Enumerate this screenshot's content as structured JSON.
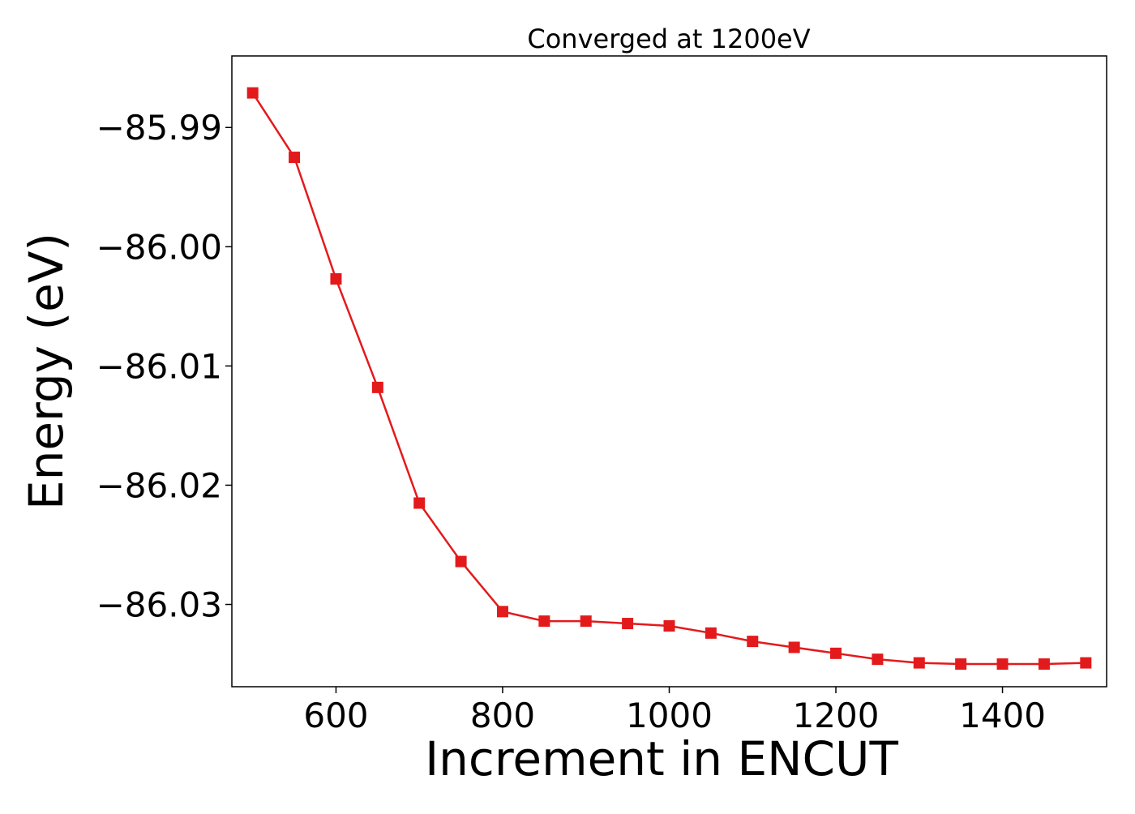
{
  "chart_data": {
    "type": "line",
    "title": "Converged at 1200eV",
    "xlabel": "Increment in ENCUT",
    "ylabel": "Energy (eV)",
    "xlim": [
      475,
      1525
    ],
    "ylim": [
      -86.0369,
      -85.984
    ],
    "x_ticks": [
      600,
      800,
      1000,
      1200,
      1400
    ],
    "x_tick_labels": [
      "600",
      "800",
      "1000",
      "1200",
      "1400"
    ],
    "y_ticks": [
      -85.99,
      -86.0,
      -86.01,
      -86.02,
      -86.03
    ],
    "y_tick_labels": [
      "−85.99",
      "−86.00",
      "−86.01",
      "−86.02",
      "−86.03"
    ],
    "grid": false,
    "series": [
      {
        "color": "#e31a1c",
        "marker": "square",
        "x": [
          500,
          550,
          600,
          650,
          700,
          750,
          800,
          850,
          900,
          950,
          1000,
          1050,
          1100,
          1150,
          1200,
          1250,
          1300,
          1350,
          1400,
          1450,
          1500
        ],
        "y": [
          -85.9871,
          -85.9925,
          -86.0027,
          -86.0118,
          -86.0215,
          -86.0264,
          -86.0306,
          -86.0314,
          -86.0314,
          -86.0316,
          -86.0318,
          -86.0324,
          -86.0331,
          -86.0336,
          -86.0341,
          -86.0346,
          -86.0349,
          -86.035,
          -86.035,
          -86.035,
          -86.0349
        ]
      }
    ]
  }
}
